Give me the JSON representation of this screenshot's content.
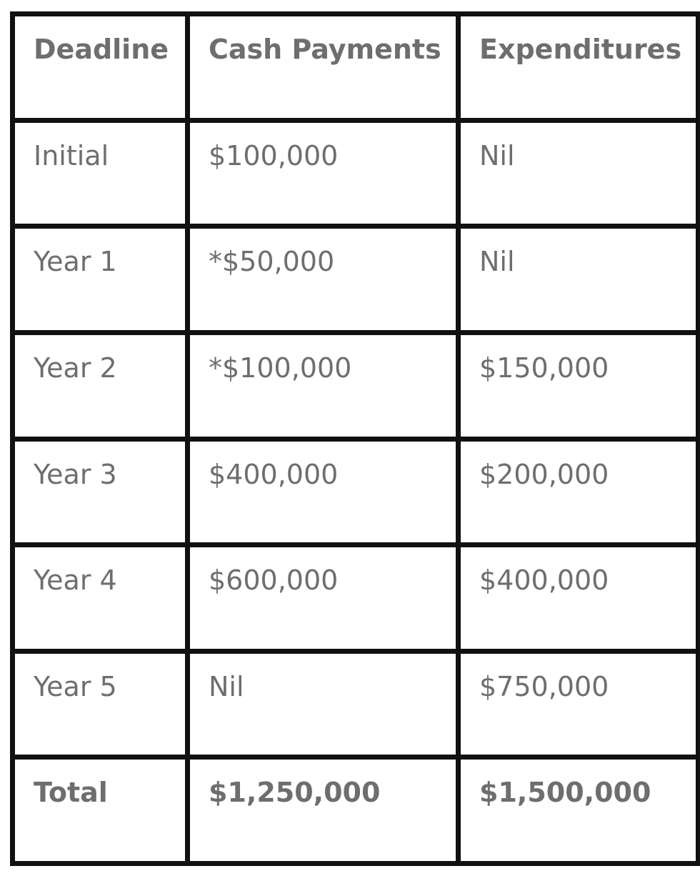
{
  "table": {
    "header": [
      "Deadline",
      "Cash Payments",
      "Expenditures"
    ],
    "rows": [
      [
        "Initial",
        "$100,000",
        "Nil"
      ],
      [
        "Year 1",
        "*$50,000",
        "Nil"
      ],
      [
        "Year 2",
        "*$100,000",
        "$150,000"
      ],
      [
        "Year 3",
        "$400,000",
        "$200,000"
      ],
      [
        "Year 4",
        "$600,000",
        "$400,000"
      ],
      [
        "Year 5",
        "Nil",
        "$750,000"
      ]
    ],
    "total": [
      "Total",
      "$1,250,000",
      "$1,500,000"
    ]
  }
}
